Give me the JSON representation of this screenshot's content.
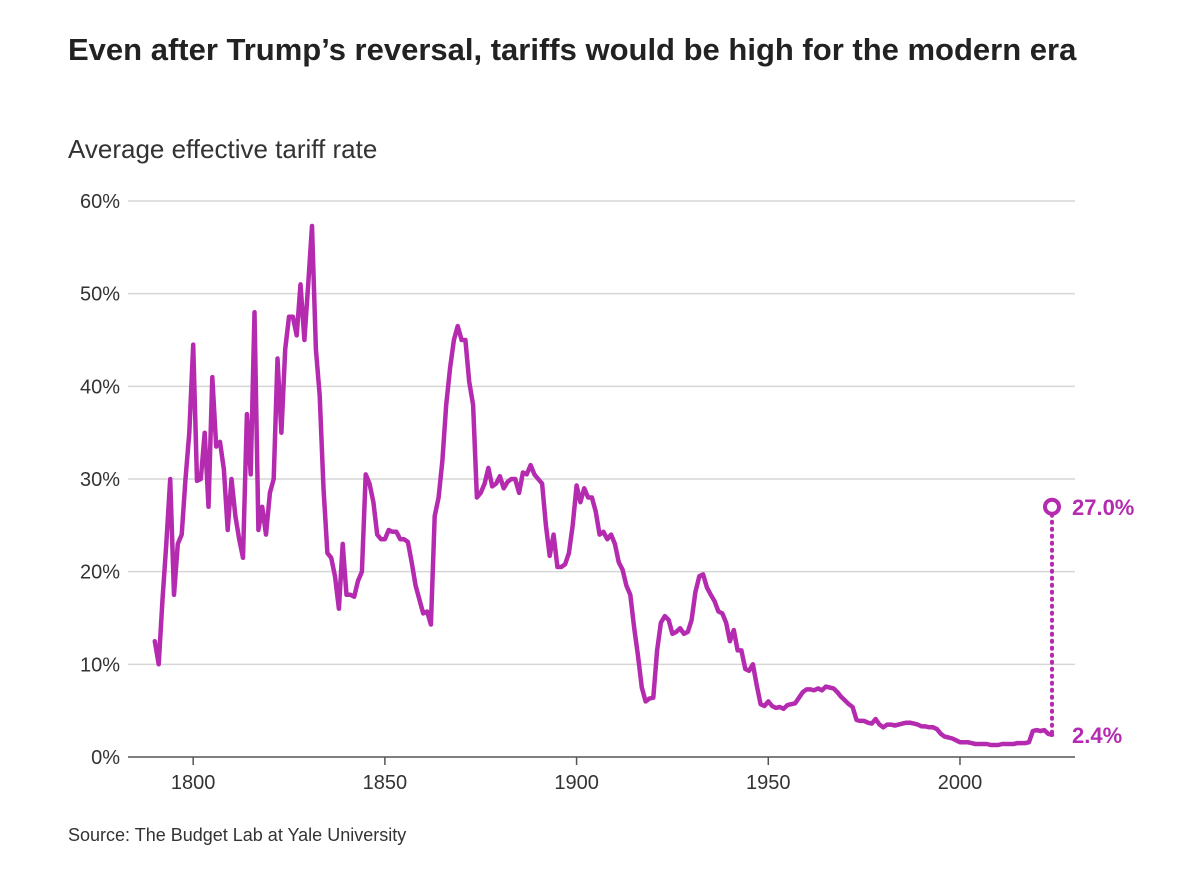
{
  "title": "Even after Trump’s reversal, tariffs would be high for the modern era",
  "source": "Source: The Budget Lab at Yale University",
  "chart_data": {
    "type": "line",
    "title": "Even after Trump’s reversal, tariffs would be high for the modern era",
    "subtitle": "Average effective tariff rate",
    "xlim": [
      1783,
      2030
    ],
    "ylim": [
      0,
      60
    ],
    "grid": true,
    "color": "#b52bb0",
    "x_ticks": [
      {
        "value": 1800,
        "label": "1800"
      },
      {
        "value": 1850,
        "label": "1850"
      },
      {
        "value": 1900,
        "label": "1900"
      },
      {
        "value": 1950,
        "label": "1950"
      },
      {
        "value": 2000,
        "label": "2000"
      }
    ],
    "y_ticks": [
      {
        "value": 0,
        "label": "0%"
      },
      {
        "value": 10,
        "label": "10%"
      },
      {
        "value": 20,
        "label": "20%"
      },
      {
        "value": 30,
        "label": "30%"
      },
      {
        "value": 40,
        "label": "40%"
      },
      {
        "value": 50,
        "label": "50%"
      },
      {
        "value": 60,
        "label": "60%"
      }
    ],
    "start_year": 1790,
    "values": [
      12.5,
      10,
      17,
      23,
      30,
      17.5,
      23,
      24,
      30,
      35,
      44.5,
      29.8,
      30,
      35,
      27,
      41,
      33.5,
      34,
      31,
      24.5,
      30,
      26,
      23.5,
      21.5,
      37,
      30.5,
      48,
      24.5,
      27,
      24,
      28.5,
      30,
      43,
      35,
      44,
      47.5,
      47.5,
      45.5,
      51,
      45,
      51,
      57.3,
      44,
      39,
      29,
      22,
      21.5,
      19.5,
      16,
      23,
      17.5,
      17.5,
      17.3,
      19,
      20,
      30.5,
      29.5,
      27.5,
      24,
      23.5,
      23.5,
      24.5,
      24.3,
      24.3,
      23.5,
      23.5,
      23.2,
      21,
      18.5,
      17,
      15.5,
      15.7,
      14.3,
      26,
      28,
      32,
      38,
      42,
      45,
      46.5,
      45,
      45,
      40.5,
      38,
      28,
      28.5,
      29.5,
      31.2,
      29.2,
      29.5,
      30.3,
      29,
      29.7,
      30,
      30,
      28.5,
      30.7,
      30.5,
      31.5,
      30.5,
      30,
      29.5,
      25,
      21.7,
      24,
      20.5,
      20.5,
      20.8,
      22,
      25,
      29.3,
      27.5,
      29,
      28,
      28,
      26.5,
      24,
      24.3,
      23.5,
      24,
      23,
      21,
      20.2,
      18.5,
      17.5,
      14,
      11,
      7.5,
      6,
      6.3,
      6.4,
      11.5,
      14.5,
      15.2,
      14.8,
      13.3,
      13.5,
      13.9,
      13.3,
      13.5,
      14.8,
      17.8,
      19.5,
      19.7,
      18.3,
      17.5,
      16.8,
      15.7,
      15.5,
      14.5,
      12.5,
      13.7,
      11.5,
      11.5,
      9.5,
      9.3,
      10,
      7.7,
      5.7,
      5.5,
      6,
      5.5,
      5.3,
      5.4,
      5.2,
      5.6,
      5.7,
      5.8,
      6.4,
      7,
      7.3,
      7.3,
      7.2,
      7.4,
      7.2,
      7.6,
      7.5,
      7.4,
      7,
      6.5,
      6.1,
      5.7,
      5.4,
      4,
      3.9,
      3.9,
      3.7,
      3.6,
      4.1,
      3.5,
      3.2,
      3.5,
      3.5,
      3.4,
      3.5,
      3.6,
      3.7,
      3.7,
      3.6,
      3.5,
      3.3,
      3.3,
      3.2,
      3.2,
      3,
      2.5,
      2.2,
      2.1,
      2,
      1.8,
      1.6,
      1.6,
      1.6,
      1.5,
      1.4,
      1.4,
      1.4,
      1.4,
      1.3,
      1.3,
      1.3,
      1.4,
      1.4,
      1.4,
      1.4,
      1.5,
      1.5,
      1.5,
      1.6,
      2.8,
      2.9,
      2.8,
      2.9,
      2.5,
      2.4
    ],
    "annotations": [
      {
        "year": 2024,
        "value": 27.0,
        "label": "27.0%",
        "marker": "open-circle"
      },
      {
        "year": 2024,
        "value": 2.4,
        "label": "2.4%"
      }
    ]
  }
}
